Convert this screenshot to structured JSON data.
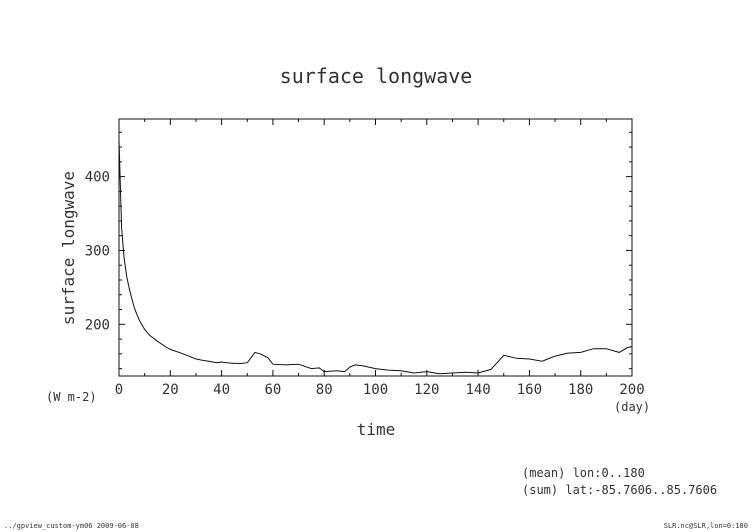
{
  "chart_data": {
    "type": "line",
    "title": "surface longwave",
    "xlabel": "time",
    "ylabel": "surface longwave",
    "x_unit": "(day)",
    "y_unit": "(W m-2)",
    "xlim": [
      0,
      200
    ],
    "ylim": [
      130,
      478
    ],
    "xticks": [
      0,
      20,
      40,
      60,
      80,
      100,
      120,
      140,
      160,
      180,
      200
    ],
    "yticks": [
      200,
      300,
      400
    ],
    "grid": false,
    "series": [
      {
        "x": [
          0,
          1,
          2,
          3,
          4,
          5,
          6,
          7,
          8,
          10,
          12,
          15,
          18,
          20,
          25,
          30,
          33,
          35,
          38,
          40,
          42,
          45,
          48,
          50,
          53,
          55,
          58,
          60,
          65,
          70,
          75,
          78,
          80,
          85,
          88,
          90,
          92,
          95,
          100,
          105,
          110,
          115,
          120,
          125,
          130,
          135,
          140,
          145,
          150,
          155,
          160,
          165,
          170,
          175,
          180,
          185,
          190,
          195,
          198,
          200
        ],
        "y": [
          450,
          330,
          290,
          265,
          248,
          235,
          222,
          213,
          205,
          193,
          185,
          177,
          170,
          166,
          160,
          153,
          151,
          150,
          148,
          149,
          148,
          147,
          147,
          148,
          162,
          160,
          155,
          146,
          145,
          146,
          140,
          141,
          136,
          137,
          136,
          142,
          145,
          144,
          140,
          138,
          137,
          134,
          136,
          133,
          134,
          135,
          134,
          139,
          158,
          154,
          153,
          150,
          157,
          161,
          162,
          167,
          167,
          162,
          168,
          170
        ]
      }
    ]
  },
  "footnotes": {
    "mean": "(mean) lon:0..180",
    "sum": "(sum) lat:-85.7606..85.7606",
    "left": "../gpview_custom-ym06  2009-06-08",
    "right": "SLR.nc@SLR,lon=0:180"
  }
}
